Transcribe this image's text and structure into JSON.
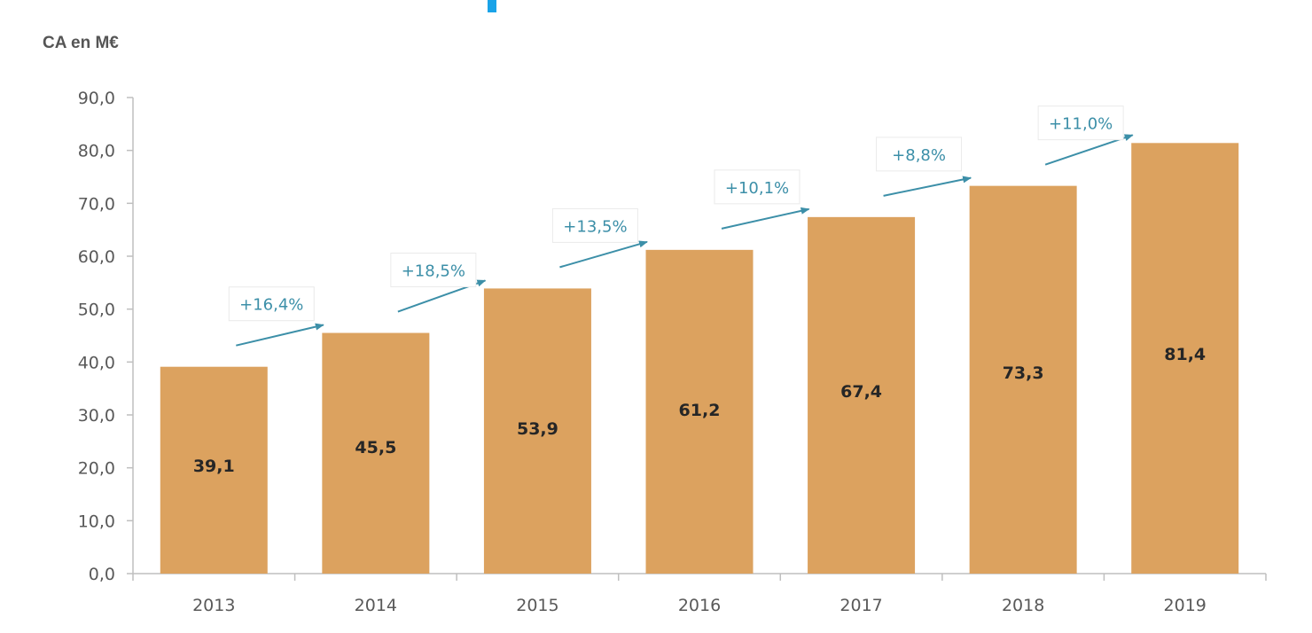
{
  "colors": {
    "bar": "#DCA25F",
    "axis": "#BFBFBF",
    "growth": "#3C8FA8",
    "top_marker": "#1AA3E8"
  },
  "chart_data": {
    "type": "bar",
    "ylabel": "CA en M€",
    "categories": [
      "2013",
      "2014",
      "2015",
      "2016",
      "2017",
      "2018",
      "2019"
    ],
    "values": [
      39.1,
      45.5,
      53.9,
      61.2,
      67.4,
      73.3,
      81.4
    ],
    "data_labels": [
      "39,1",
      "45,5",
      "53,9",
      "61,2",
      "67,4",
      "73,3",
      "81,4"
    ],
    "ylim": [
      0,
      90
    ],
    "y_ticks": [
      "0,0",
      "10,0",
      "20,0",
      "30,0",
      "40,0",
      "50,0",
      "60,0",
      "70,0",
      "80,0",
      "90,0"
    ],
    "grid": false,
    "legend": "none",
    "annotations": [
      "+16,4%",
      "+18,5%",
      "+13,5%",
      "+10,1%",
      "+8,8%",
      "+11,0%"
    ]
  }
}
